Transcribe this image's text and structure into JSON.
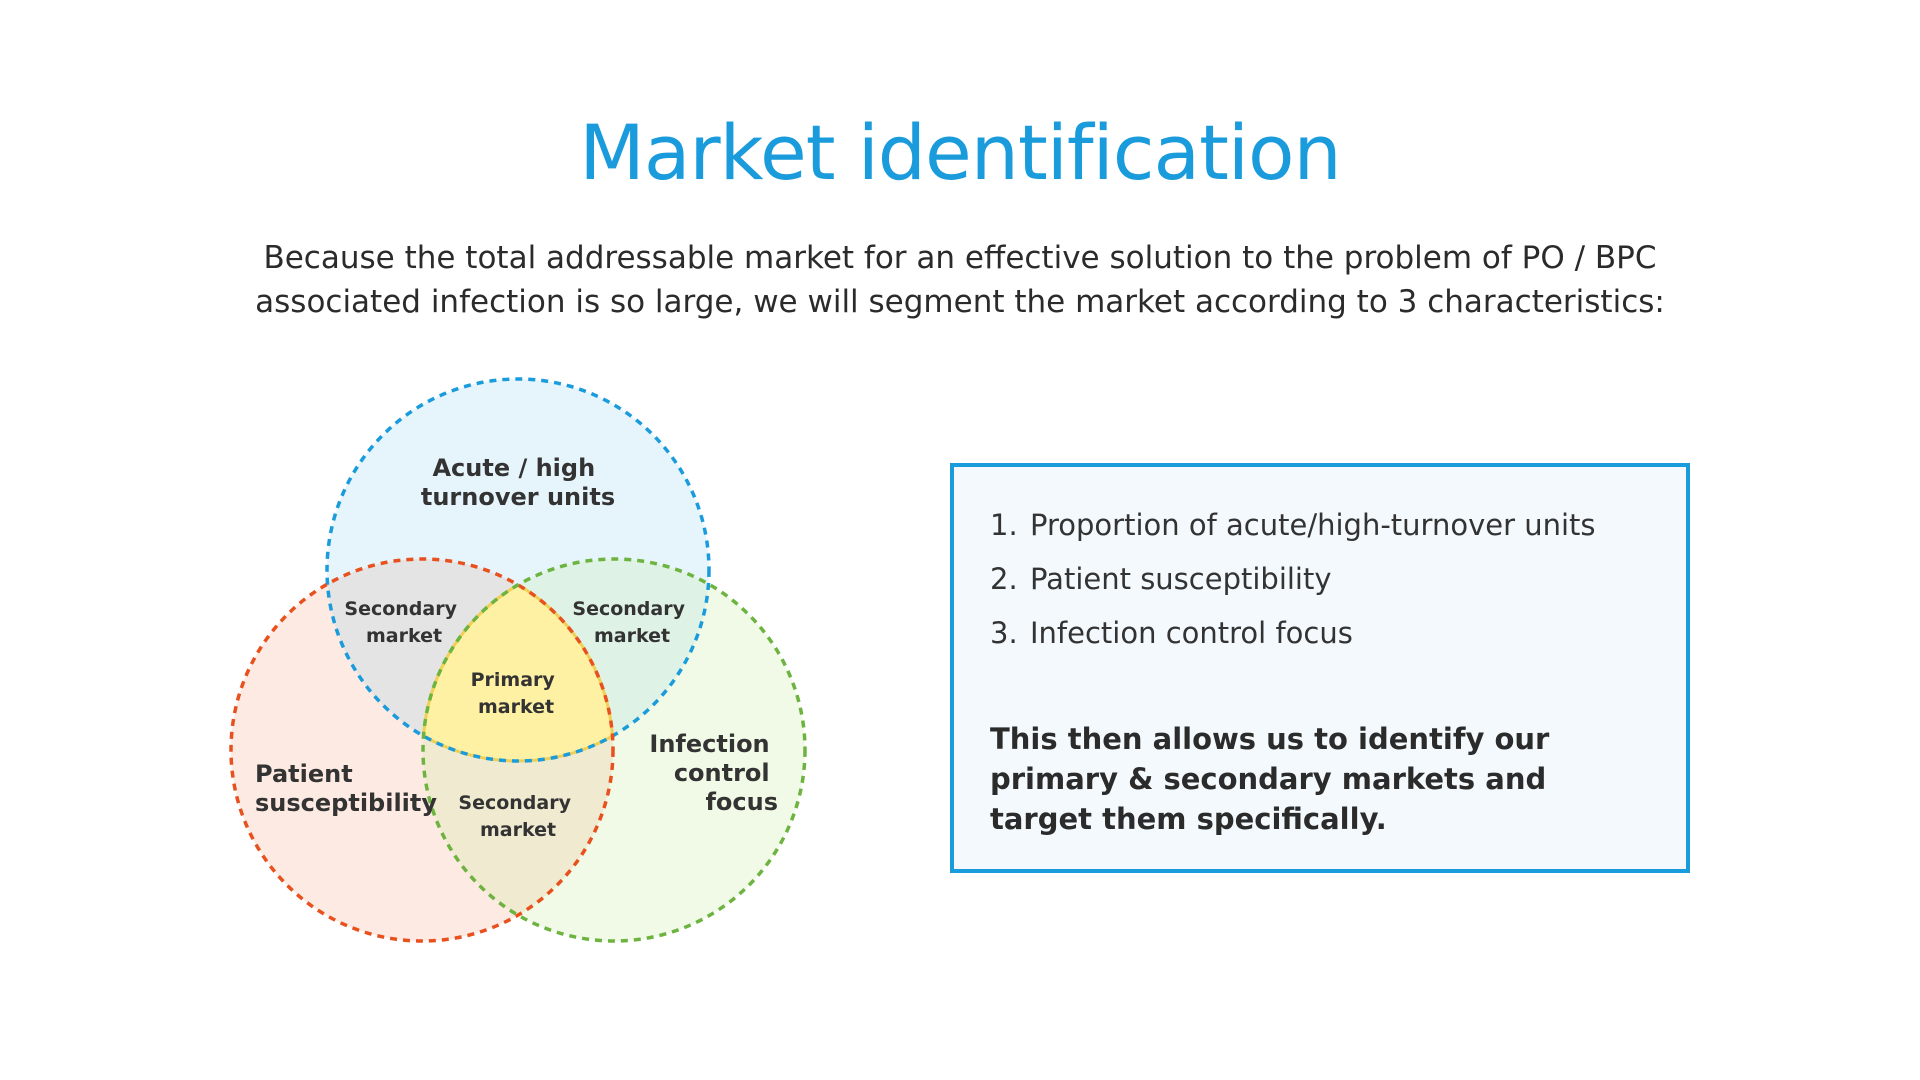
{
  "slide": {
    "title": "Market identification",
    "intro_line1": "Because the total addressable market for an effective solution to the problem of PO / BPC",
    "intro_line2": "associated infection is so large, we will segment the market according to 3 characteristics:"
  },
  "venn": {
    "circles": [
      {
        "name": "acute-high-turnover-units",
        "line1": "Acute / high",
        "line2": "turnover units",
        "stroke": "#1a9bdc",
        "fill": "#e6f5fc"
      },
      {
        "name": "patient-susceptibility",
        "line1": "Patient",
        "line2": "susceptibility",
        "stroke": "#e8501e",
        "fill": "#fdebe3"
      },
      {
        "name": "infection-control-focus",
        "line1": "Infection",
        "line2": "control",
        "line3": "focus",
        "stroke": "#6db33f",
        "fill": "#f0fae6"
      }
    ],
    "overlaps": {
      "top_left": {
        "line1": "Secondary",
        "line2": "market",
        "fill": "#e4e4e4"
      },
      "top_right": {
        "line1": "Secondary",
        "line2": "market",
        "fill": "#dff2e6"
      },
      "bottom": {
        "line1": "Secondary",
        "line2": "market",
        "fill": "#f0ead0"
      },
      "center": {
        "line1": "Primary",
        "line2": "market",
        "fill": "#fff1a3",
        "stroke": "#f0cf55"
      }
    }
  },
  "info_box": {
    "items": [
      {
        "num": "1.",
        "text": "Proportion of acute/high-turnover units"
      },
      {
        "num": "2.",
        "text": "Patient susceptibility"
      },
      {
        "num": "3.",
        "text": "Infection control focus"
      }
    ],
    "conclusion": "This then allows us to identify our primary & secondary markets and target them specifically.",
    "border_color": "#1a9bdc",
    "background": "#f3f9fc"
  }
}
